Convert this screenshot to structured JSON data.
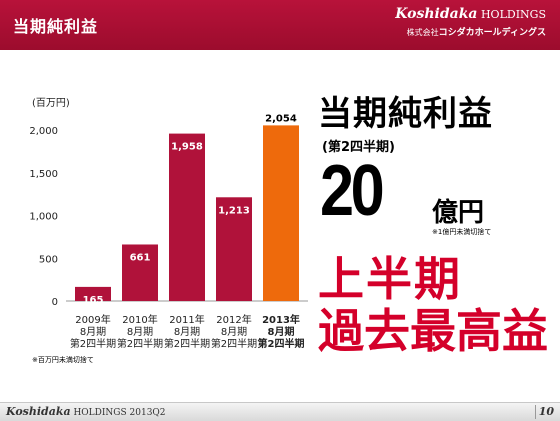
{
  "header": {
    "title": "当期純利益",
    "brand_en_italic": "Koshidaka",
    "brand_en_rest": " HOLDINGS",
    "brand_jp_prefix": "株式会社",
    "brand_jp_name": "コシダカホールディングス"
  },
  "headline": {
    "title": "当期純利益",
    "subtitle": "(第2四半期)",
    "value": "20",
    "unit": "億円",
    "note": "※1億円未満切捨て",
    "tagline1": "上半期",
    "tagline2": "過去最高益"
  },
  "footnote": "※百万円未満切捨て",
  "footer": {
    "brand_italic": "Koshidaka",
    "brand_rest": " HOLDINGS 2013Q2",
    "page": "10"
  },
  "colors": {
    "header": "#a8102f",
    "bar": "#b0123a",
    "bar_highlight": "#ee6a0c",
    "tagline": "#d4002a"
  },
  "chart_data": {
    "type": "bar",
    "ylabel": "(百万円)",
    "ylim": [
      0,
      2000
    ],
    "yticks": [
      "0",
      "500",
      "1,000",
      "1,500",
      "2,000"
    ],
    "ytick_values": [
      0,
      500,
      1000,
      1500,
      2000
    ],
    "categories": [
      [
        "2009年",
        "8月期",
        "第2四半期"
      ],
      [
        "2010年",
        "8月期",
        "第2四半期"
      ],
      [
        "2011年",
        "8月期",
        "第2四半期"
      ],
      [
        "2012年",
        "8月期",
        "第2四半期"
      ],
      [
        "2013年",
        "8月期",
        "第2四半期"
      ]
    ],
    "values": [
      165,
      661,
      1958,
      1213,
      2054
    ],
    "data_labels": [
      "165",
      "661",
      "1,958",
      "1,213",
      "2,054"
    ],
    "highlight_index": 4,
    "grid": false
  }
}
